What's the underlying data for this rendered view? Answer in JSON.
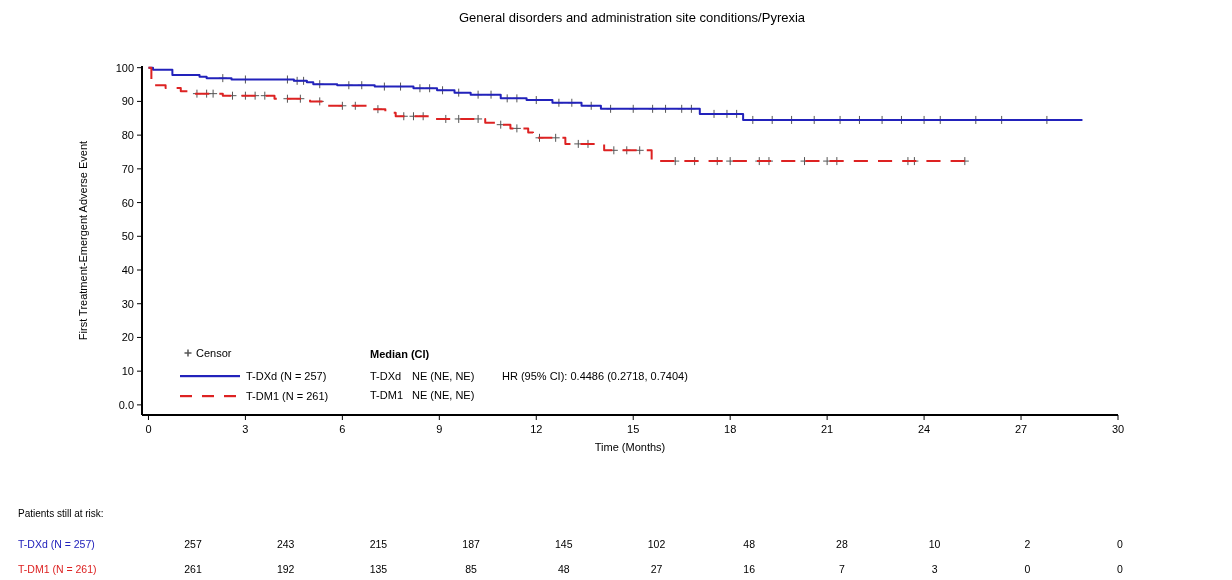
{
  "chart_data": {
    "type": "step",
    "title": "General disorders and administration site conditions/Pyrexia",
    "xlabel": "Time (Months)",
    "ylabel": "First Treatment-Emergent Adverse Event",
    "xlim": [
      -0.2,
      30
    ],
    "xticks": [
      0,
      3,
      6,
      9,
      12,
      15,
      18,
      21,
      24,
      27,
      30
    ],
    "ylim": [
      -3,
      100.5
    ],
    "yticks": [
      {
        "value": 0,
        "label": "0.0"
      },
      10,
      20,
      30,
      40,
      50,
      60,
      70,
      80,
      90,
      100
    ],
    "grid": false,
    "legend": "bottom left",
    "series": [
      {
        "name": "Censor",
        "type": "scatter",
        "marker": "cross",
        "color": "#555555",
        "x": [
          2.3,
          3.0,
          4.3,
          4.6,
          4.8,
          5.3,
          6.2,
          6.6,
          7.3,
          7.8,
          8.4,
          8.7,
          9.1,
          9.6,
          10.2,
          10.6,
          11.1,
          11.4,
          12.0,
          12.7,
          13.1,
          13.7,
          14.3,
          15.0,
          15.6,
          16.0,
          16.5,
          16.8,
          17.5,
          17.9,
          18.2,
          18.7,
          19.3,
          19.9,
          20.6,
          21.4,
          22.0,
          22.7,
          23.3,
          24.0,
          24.5,
          25.6,
          26.4,
          27.8,
          1.5,
          1.8,
          2.0,
          2.6,
          3.0,
          3.3,
          3.6,
          4.3,
          4.7,
          5.3,
          6.0,
          6.4,
          7.1,
          7.9,
          8.2,
          8.5,
          9.2,
          9.6,
          10.2,
          10.9,
          11.4,
          12.1,
          12.6,
          13.3,
          13.6,
          14.4,
          14.8,
          15.2,
          16.3,
          16.9,
          17.6,
          18.0,
          18.9,
          19.2,
          20.3,
          21.0,
          21.3,
          23.5,
          23.7,
          25.26
        ],
        "values": [
          96.9,
          96.5,
          96.5,
          96.1,
          96.1,
          95.1,
          94.8,
          94.8,
          94.4,
          94.4,
          93.9,
          93.9,
          93.3,
          92.6,
          92.0,
          92.0,
          90.9,
          90.9,
          90.4,
          89.6,
          89.6,
          88.7,
          87.8,
          87.8,
          87.8,
          87.8,
          87.8,
          87.8,
          86.3,
          86.3,
          86.3,
          84.5,
          84.5,
          84.5,
          84.5,
          84.5,
          84.5,
          84.5,
          84.5,
          84.5,
          84.5,
          84.5,
          84.5,
          84.5,
          92.3,
          92.3,
          92.3,
          91.7,
          91.7,
          91.7,
          91.7,
          90.8,
          90.8,
          90.0,
          88.7,
          88.7,
          87.7,
          85.6,
          85.6,
          85.6,
          84.8,
          84.8,
          84.8,
          83.1,
          82.0,
          79.2,
          79.2,
          77.4,
          77.4,
          75.5,
          75.5,
          75.5,
          72.3,
          72.3,
          72.3,
          72.3,
          72.3,
          72.3,
          72.3,
          72.3,
          72.3,
          72.3,
          72.3,
          72.3
        ]
      },
      {
        "name": "T-DXd (N = 257)",
        "type": "step",
        "line_style": "solid",
        "color": "#2222bb",
        "x": [
          0,
          0.14,
          0.74,
          1.58,
          1.8,
          2.57,
          4.5,
          4.9,
          5.1,
          5.84,
          7.0,
          8.2,
          8.93,
          9.47,
          9.97,
          10.9,
          11.7,
          12.5,
          13.4,
          14.0,
          17.06,
          18.4,
          28.9
        ],
        "values": [
          100,
          99.4,
          97.8,
          97.3,
          96.9,
          96.5,
          96.1,
          95.7,
          95.1,
          94.8,
          94.4,
          93.9,
          93.3,
          92.6,
          92.0,
          90.9,
          90.4,
          89.6,
          88.7,
          87.8,
          86.3,
          84.5,
          84.5
        ]
      },
      {
        "name": "T-DM1 (N = 261)",
        "type": "step",
        "line_style": "dashed",
        "color": "#dd2222",
        "x": [
          0,
          0.09,
          0.53,
          1.0,
          1.4,
          2.3,
          3.9,
          5.0,
          5.56,
          6.94,
          7.33,
          7.65,
          8.88,
          10.42,
          10.75,
          11.2,
          11.75,
          11.9,
          12.9,
          14.1,
          15.57,
          25.26
        ],
        "values": [
          100,
          94.8,
          94.0,
          93.0,
          92.3,
          91.7,
          90.8,
          90.0,
          88.7,
          87.7,
          86.6,
          85.6,
          84.8,
          83.7,
          83.1,
          82.0,
          80.8,
          79.2,
          77.4,
          75.5,
          72.3,
          72.3
        ]
      }
    ],
    "annotations": [
      "Median (CI)",
      "T-DXd",
      "NE (NE, NE)",
      "HR (95% CI): 0.4486 (0.2718, 0.7404)",
      "T-DM1",
      "NE (NE, NE)",
      "Patients still at risk:",
      "T-DXd (N = 257)",
      "T-DM1 (N = 261)",
      "257",
      "243",
      "215",
      "187",
      "145",
      "102",
      "48",
      "28",
      "10",
      "2",
      "0",
      "261",
      "192",
      "135",
      "85",
      "48",
      "27",
      "16",
      "7",
      "3",
      "0",
      "0"
    ]
  }
}
